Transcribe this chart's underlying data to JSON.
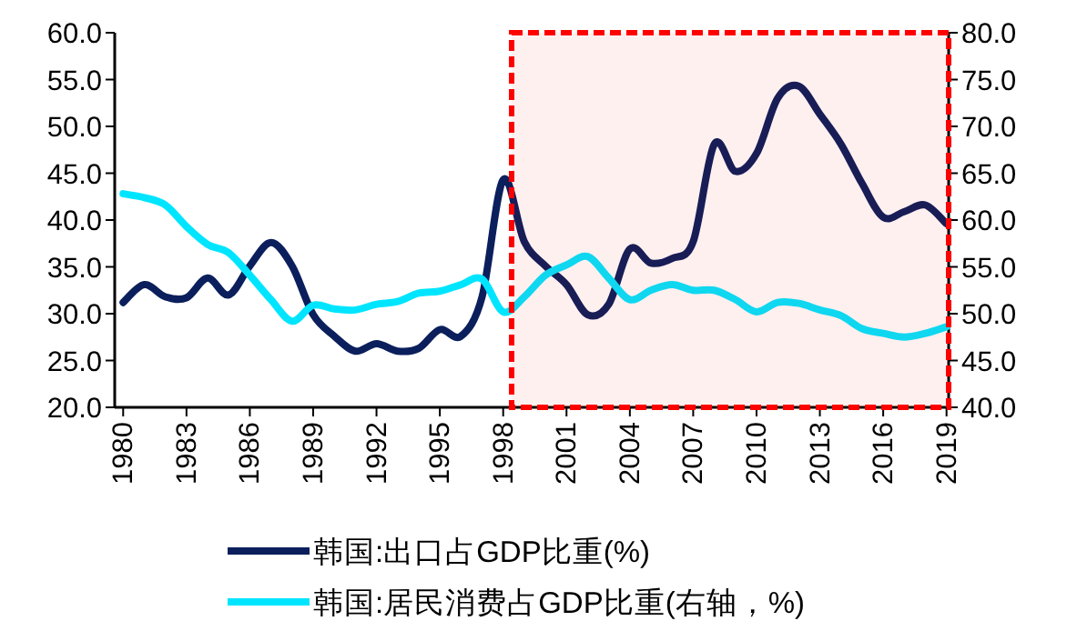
{
  "chart_data": {
    "type": "line",
    "x": [
      1980,
      1981,
      1982,
      1983,
      1984,
      1985,
      1986,
      1987,
      1988,
      1989,
      1990,
      1991,
      1992,
      1993,
      1994,
      1995,
      1996,
      1997,
      1998,
      1999,
      2000,
      2001,
      2002,
      2003,
      2004,
      2005,
      2006,
      2007,
      2008,
      2009,
      2010,
      2011,
      2012,
      2013,
      2014,
      2015,
      2016,
      2017,
      2018,
      2019
    ],
    "series": [
      {
        "name": "韩国:出口占GDP比重(%)",
        "color": "#0b1f5c",
        "values": [
          31.2,
          33.1,
          31.8,
          31.7,
          33.8,
          32.0,
          35.1,
          37.6,
          35.1,
          29.9,
          27.6,
          26.0,
          26.8,
          26.0,
          26.3,
          28.3,
          27.6,
          31.8,
          44.3,
          37.7,
          35.1,
          33.1,
          29.9,
          31.0,
          36.9,
          35.4,
          35.9,
          37.7,
          48.1,
          45.2,
          47.1,
          53.0,
          54.3,
          51.3,
          48.1,
          43.9,
          40.3,
          40.9,
          41.6,
          39.6
        ]
      },
      {
        "name": "韩国:居民消费占GDP比重(右轴，%)",
        "color": "#00e5ff",
        "axis": "y2",
        "values": [
          62.8,
          62.4,
          61.6,
          59.3,
          57.4,
          56.5,
          54.1,
          51.5,
          49.2,
          50.9,
          50.5,
          50.4,
          51.0,
          51.3,
          52.2,
          52.4,
          53.1,
          53.7,
          50.2,
          51.8,
          54.1,
          55.2,
          56.1,
          53.8,
          51.5,
          52.5,
          53.1,
          52.5,
          52.5,
          51.5,
          50.2,
          51.2,
          51.1,
          50.4,
          49.8,
          48.4,
          47.9,
          47.5,
          47.9,
          48.6
        ]
      }
    ],
    "xlim": [
      1979.6,
      2019.1
    ],
    "xticks": [
      1980,
      1983,
      1986,
      1989,
      1992,
      1995,
      1998,
      2001,
      2004,
      2007,
      2010,
      2013,
      2016,
      2019
    ],
    "ylim": [
      20,
      60
    ],
    "yticks": [
      {
        "value": 20,
        "label": "20.0"
      },
      {
        "value": 25,
        "label": "25.0"
      },
      {
        "value": 30,
        "label": "30.0"
      },
      {
        "value": 35,
        "label": "35.0"
      },
      {
        "value": 40,
        "label": "40.0"
      },
      {
        "value": 45,
        "label": "45.0"
      },
      {
        "value": 50,
        "label": "50.0"
      },
      {
        "value": 55,
        "label": "55.0"
      },
      {
        "value": 60,
        "label": "60.0"
      }
    ],
    "y2lim": [
      40,
      80
    ],
    "y2ticks": [
      {
        "value": 40,
        "label": "40.0"
      },
      {
        "value": 45,
        "label": "45.0"
      },
      {
        "value": 50,
        "label": "50.0"
      },
      {
        "value": 55,
        "label": "55.0"
      },
      {
        "value": 60,
        "label": "60.0"
      },
      {
        "value": 65,
        "label": "65.0"
      },
      {
        "value": 70,
        "label": "70.0"
      },
      {
        "value": 75,
        "label": "75.0"
      },
      {
        "value": 80,
        "label": "80.0"
      }
    ],
    "bands": [
      {
        "axis": "x",
        "from": 1998.4,
        "to": 2019.1,
        "color": "#ff0000"
      }
    ],
    "legend": "bottom",
    "grid": false,
    "marker": "none",
    "line_style": "solid"
  }
}
